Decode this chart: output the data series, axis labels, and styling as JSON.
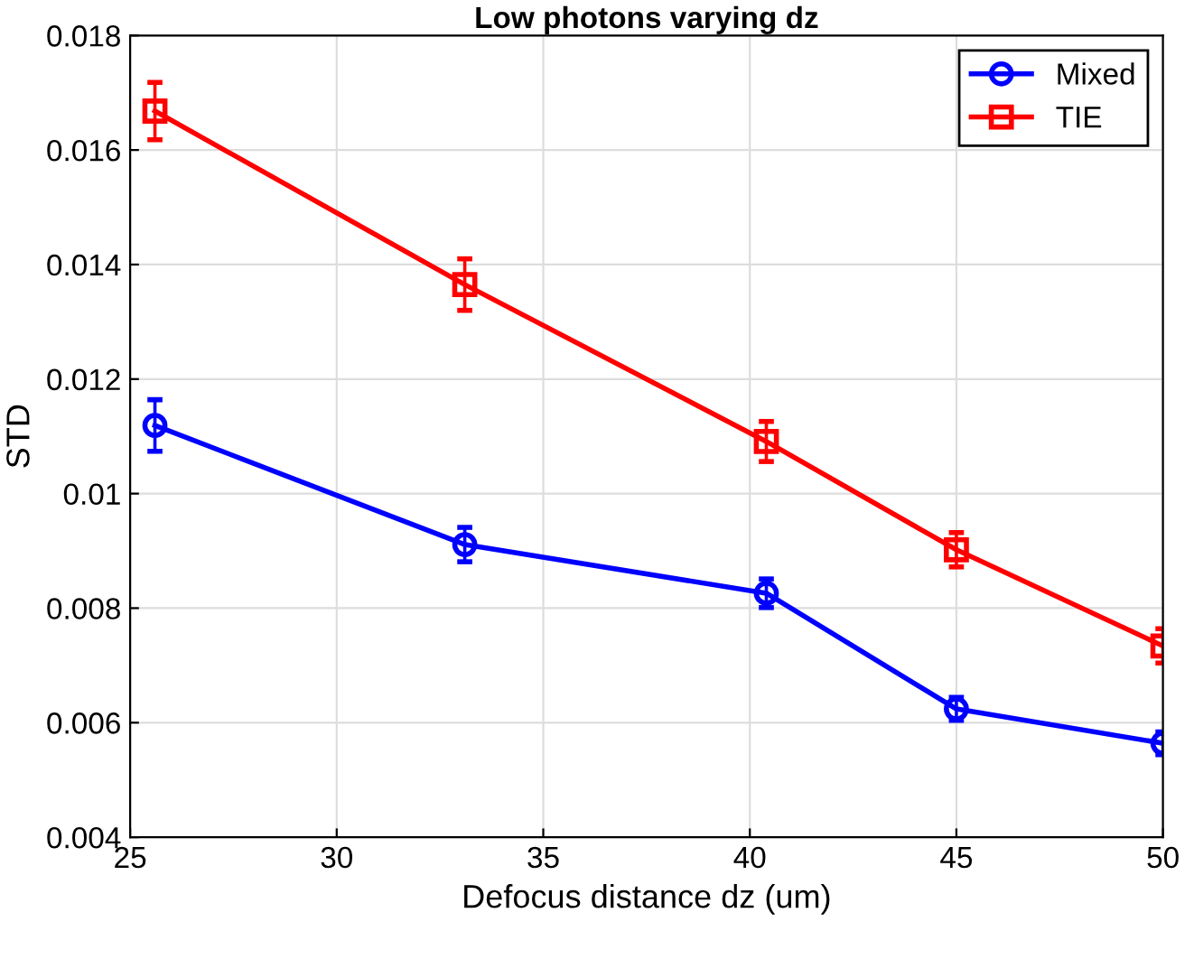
{
  "chart_data": {
    "type": "line",
    "title": "Low photons varying dz",
    "xlabel": "Defocus distance dz (um)",
    "ylabel": "STD",
    "x": [
      25.6,
      33.1,
      40.4,
      45.0,
      50.0
    ],
    "series": [
      {
        "name": "Mixed",
        "color": "#0000ff",
        "marker": "circle",
        "values": [
          0.01119,
          0.00911,
          0.00826,
          0.00624,
          0.00564
        ],
        "errors": [
          0.00045,
          0.0003,
          0.00025,
          0.0002,
          0.0002
        ]
      },
      {
        "name": "TIE",
        "color": "#ff0000",
        "marker": "square",
        "values": [
          0.01668,
          0.01365,
          0.01091,
          0.00902,
          0.00734
        ],
        "errors": [
          0.0005,
          0.00045,
          0.00035,
          0.0003,
          0.0003
        ]
      }
    ],
    "xlim": [
      25,
      50
    ],
    "xticks": [
      25,
      30,
      35,
      40,
      45,
      50
    ],
    "ylim": [
      0.004,
      0.018
    ],
    "yticks": [
      0.004,
      0.006,
      0.008,
      0.01,
      0.012,
      0.014,
      0.016,
      0.018
    ],
    "grid": true,
    "legend": "top right",
    "line_style": "solid"
  }
}
